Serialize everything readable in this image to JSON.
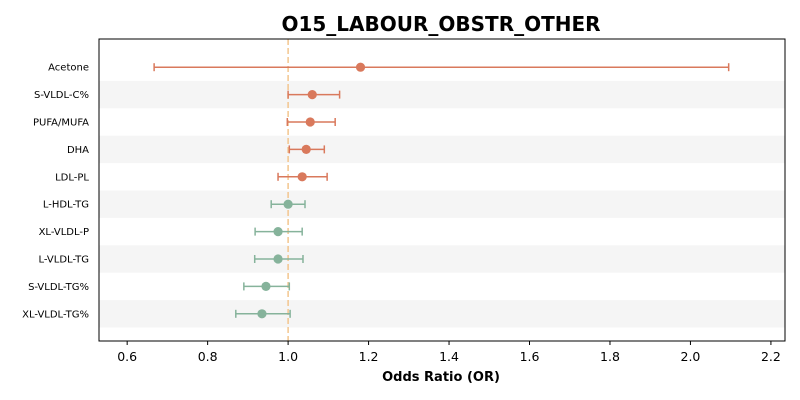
{
  "chart_data": {
    "type": "forest",
    "title": "O15_LABOUR_OBSTR_OTHER",
    "xlabel": "Odds Ratio (OR)",
    "xlim": [
      0.53,
      2.235
    ],
    "xticks": [
      "0.6",
      "0.8",
      "1.0",
      "1.2",
      "1.4",
      "1.6",
      "1.8",
      "2.0",
      "2.2"
    ],
    "reference_line": 1.0,
    "colors": {
      "positive": "#d9795c",
      "negative": "#86b39b",
      "reference": "#f3c58e",
      "band": "#f5f5f5"
    },
    "rows": [
      {
        "label": "Acetone",
        "or": 1.18,
        "lo": 0.667,
        "hi": 2.095
      },
      {
        "label": "S-VLDL-C%",
        "or": 1.06,
        "lo": 1.0,
        "hi": 1.128
      },
      {
        "label": "PUFA/MUFA",
        "or": 1.055,
        "lo": 0.998,
        "hi": 1.117
      },
      {
        "label": "DHA",
        "or": 1.045,
        "lo": 1.003,
        "hi": 1.09
      },
      {
        "label": "LDL-PL",
        "or": 1.035,
        "lo": 0.975,
        "hi": 1.097
      },
      {
        "label": "L-HDL-TG",
        "or": 1.0,
        "lo": 0.958,
        "hi": 1.042
      },
      {
        "label": "XL-VLDL-P",
        "or": 0.975,
        "lo": 0.918,
        "hi": 1.035
      },
      {
        "label": "L-VLDL-TG",
        "or": 0.975,
        "lo": 0.917,
        "hi": 1.037
      },
      {
        "label": "S-VLDL-TG%",
        "or": 0.945,
        "lo": 0.89,
        "hi": 1.003
      },
      {
        "label": "XL-VLDL-TG%",
        "or": 0.935,
        "lo": 0.87,
        "hi": 1.005
      }
    ]
  }
}
